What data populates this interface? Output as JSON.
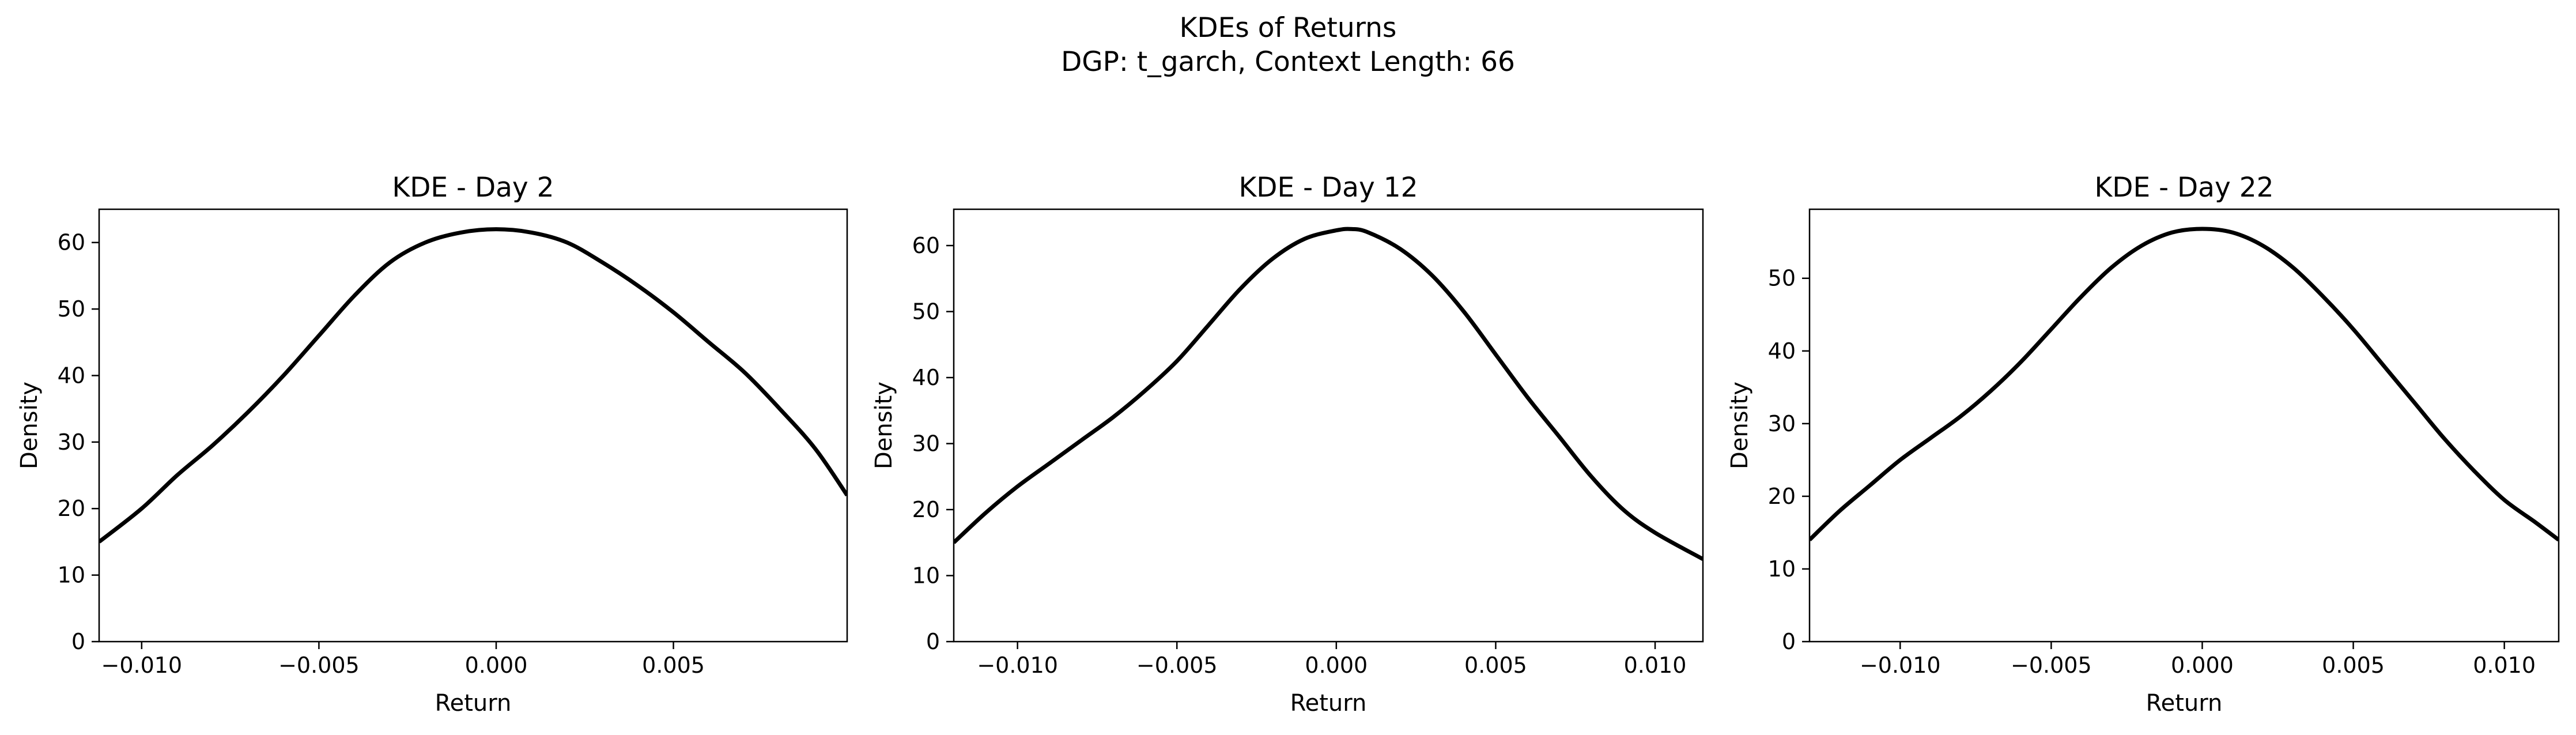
{
  "figure": {
    "suptitle_line1": "KDEs of Returns",
    "suptitle_line2": "DGP: t_garch, Context Length: 66"
  },
  "chart_data": [
    {
      "type": "line",
      "title": "KDE - Day 2",
      "xlabel": "Return",
      "ylabel": "Density",
      "xlim": [
        -0.0112,
        0.0099
      ],
      "ylim": [
        0,
        65
      ],
      "xticks": [
        -0.01,
        -0.005,
        0.0,
        0.005
      ],
      "xtick_labels": [
        "−0.010",
        "−0.005",
        "0.000",
        "0.005"
      ],
      "yticks": [
        0,
        10,
        20,
        30,
        40,
        50,
        60
      ],
      "ytick_labels": [
        "0",
        "10",
        "20",
        "30",
        "40",
        "50",
        "60"
      ],
      "grid": false,
      "line_color": "#000000",
      "series": [
        {
          "x": [
            -0.0112,
            -0.01,
            -0.009,
            -0.008,
            -0.007,
            -0.006,
            -0.005,
            -0.004,
            -0.003,
            -0.002,
            -0.001,
            0.0,
            0.001,
            0.002,
            0.003,
            0.004,
            0.005,
            0.006,
            0.007,
            0.008,
            0.009,
            0.0099
          ],
          "y": [
            15.0,
            20.0,
            25.0,
            29.5,
            34.5,
            40.0,
            46.0,
            52.0,
            57.0,
            60.0,
            61.5,
            62.0,
            61.5,
            60.0,
            57.0,
            53.5,
            49.5,
            45.0,
            40.5,
            35.0,
            29.0,
            22.0
          ]
        }
      ]
    },
    {
      "type": "line",
      "title": "KDE - Day 12",
      "xlabel": "Return",
      "ylabel": "Density",
      "xlim": [
        -0.012,
        0.0115
      ],
      "ylim": [
        0,
        65.5
      ],
      "xticks": [
        -0.01,
        -0.005,
        0.0,
        0.005,
        0.01
      ],
      "xtick_labels": [
        "−0.010",
        "−0.005",
        "0.000",
        "0.005",
        "0.010"
      ],
      "yticks": [
        0,
        10,
        20,
        30,
        40,
        50,
        60
      ],
      "ytick_labels": [
        "0",
        "10",
        "20",
        "30",
        "40",
        "50",
        "60"
      ],
      "grid": false,
      "line_color": "#000000",
      "series": [
        {
          "x": [
            -0.012,
            -0.011,
            -0.01,
            -0.009,
            -0.008,
            -0.007,
            -0.006,
            -0.005,
            -0.004,
            -0.003,
            -0.002,
            -0.001,
            0.0,
            0.0005,
            0.001,
            0.002,
            0.003,
            0.004,
            0.005,
            0.006,
            0.007,
            0.008,
            0.009,
            0.01,
            0.0115
          ],
          "y": [
            15.0,
            19.5,
            23.5,
            27.0,
            30.5,
            34.0,
            38.0,
            42.5,
            48.0,
            53.5,
            58.0,
            61.0,
            62.3,
            62.5,
            62.0,
            59.5,
            55.5,
            50.0,
            43.5,
            37.0,
            31.0,
            25.0,
            20.0,
            16.5,
            12.5
          ]
        }
      ]
    },
    {
      "type": "line",
      "title": "KDE - Day 22",
      "xlabel": "Return",
      "ylabel": "Density",
      "xlim": [
        -0.013,
        0.0118
      ],
      "ylim": [
        0,
        59.5
      ],
      "xticks": [
        -0.01,
        -0.005,
        0.0,
        0.005,
        0.01
      ],
      "xtick_labels": [
        "−0.010",
        "−0.005",
        "0.000",
        "0.005",
        "0.010"
      ],
      "yticks": [
        0,
        10,
        20,
        30,
        40,
        50
      ],
      "ytick_labels": [
        "0",
        "10",
        "20",
        "30",
        "40",
        "50"
      ],
      "grid": false,
      "line_color": "#000000",
      "series": [
        {
          "x": [
            -0.013,
            -0.012,
            -0.011,
            -0.01,
            -0.009,
            -0.008,
            -0.007,
            -0.006,
            -0.005,
            -0.004,
            -0.003,
            -0.002,
            -0.001,
            0.0,
            0.001,
            0.002,
            0.003,
            0.004,
            0.005,
            0.006,
            0.007,
            0.008,
            0.009,
            0.01,
            0.011,
            0.0118
          ],
          "y": [
            14.0,
            18.0,
            21.5,
            25.0,
            28.0,
            31.0,
            34.5,
            38.5,
            43.0,
            47.5,
            51.5,
            54.5,
            56.3,
            56.8,
            56.3,
            54.5,
            51.5,
            47.5,
            43.0,
            38.0,
            33.0,
            28.0,
            23.5,
            19.5,
            16.5,
            14.0
          ]
        }
      ]
    }
  ]
}
